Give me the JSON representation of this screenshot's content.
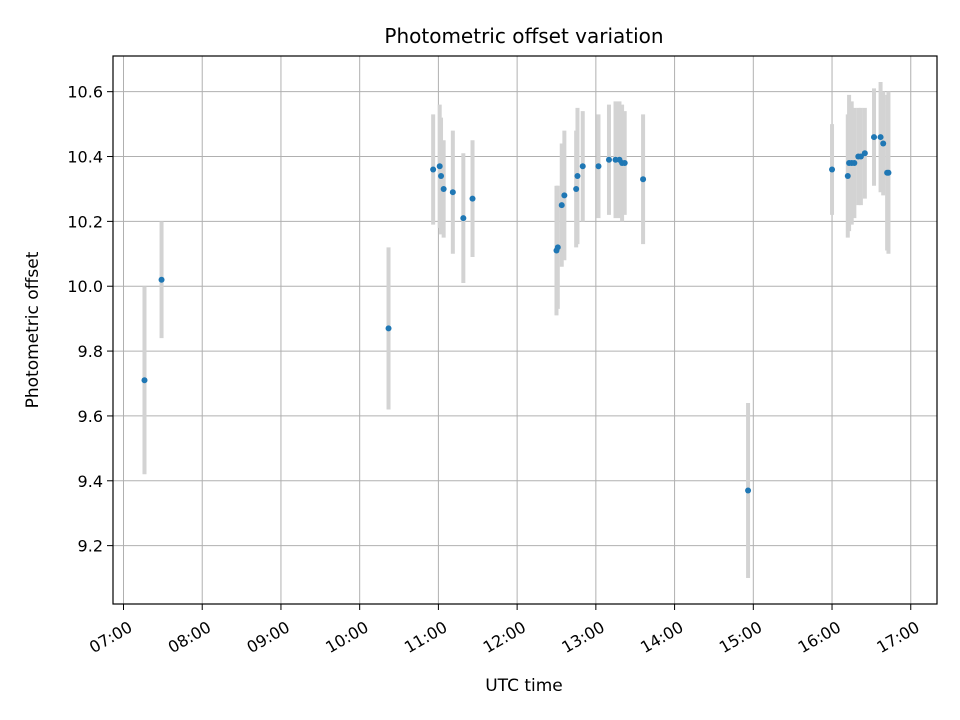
{
  "chart_data": {
    "type": "scatter",
    "title": "Photometric offset variation",
    "xlabel": "UTC time",
    "ylabel": "Photometric offset",
    "xlim": [
      "06:52",
      "17:20"
    ],
    "ylim": [
      9.02,
      10.71
    ],
    "x_ticks": [
      "07:00",
      "08:00",
      "09:00",
      "10:00",
      "11:00",
      "12:00",
      "13:00",
      "14:00",
      "15:00",
      "16:00",
      "17:00"
    ],
    "y_ticks": [
      9.2,
      9.4,
      9.6,
      9.8,
      10.0,
      10.2,
      10.4,
      10.6
    ],
    "grid": true,
    "colors": {
      "point": "#1f77b4",
      "errorbar": "#d3d3d3",
      "grid": "#b0b0b0"
    },
    "points": [
      {
        "time": "07:16",
        "y": 9.71,
        "err": 0.29
      },
      {
        "time": "07:29",
        "y": 10.02,
        "err": 0.18
      },
      {
        "time": "10:22",
        "y": 9.87,
        "err": 0.25
      },
      {
        "time": "10:56",
        "y": 10.36,
        "err": 0.17
      },
      {
        "time": "11:01",
        "y": 10.37,
        "err": 0.19
      },
      {
        "time": "11:02",
        "y": 10.34,
        "err": 0.18
      },
      {
        "time": "11:04",
        "y": 10.3,
        "err": 0.15
      },
      {
        "time": "11:11",
        "y": 10.29,
        "err": 0.19
      },
      {
        "time": "11:19",
        "y": 10.21,
        "err": 0.2
      },
      {
        "time": "11:26",
        "y": 10.27,
        "err": 0.18
      },
      {
        "time": "12:30",
        "y": 10.11,
        "err": 0.2
      },
      {
        "time": "12:31",
        "y": 10.12,
        "err": 0.19
      },
      {
        "time": "12:34",
        "y": 10.25,
        "err": 0.19
      },
      {
        "time": "12:36",
        "y": 10.28,
        "err": 0.2
      },
      {
        "time": "12:45",
        "y": 10.3,
        "err": 0.18
      },
      {
        "time": "12:46",
        "y": 10.34,
        "err": 0.21
      },
      {
        "time": "12:50",
        "y": 10.37,
        "err": 0.17
      },
      {
        "time": "13:02",
        "y": 10.37,
        "err": 0.16
      },
      {
        "time": "13:10",
        "y": 10.39,
        "err": 0.17
      },
      {
        "time": "13:15",
        "y": 10.39,
        "err": 0.18
      },
      {
        "time": "13:18",
        "y": 10.39,
        "err": 0.18
      },
      {
        "time": "13:20",
        "y": 10.38,
        "err": 0.18
      },
      {
        "time": "13:22",
        "y": 10.38,
        "err": 0.16
      },
      {
        "time": "13:36",
        "y": 10.33,
        "err": 0.2
      },
      {
        "time": "14:56",
        "y": 9.37,
        "err": 0.27
      },
      {
        "time": "16:00",
        "y": 10.36,
        "err": 0.14
      },
      {
        "time": "16:12",
        "y": 10.34,
        "err": 0.19
      },
      {
        "time": "16:13",
        "y": 10.38,
        "err": 0.21
      },
      {
        "time": "16:15",
        "y": 10.38,
        "err": 0.19
      },
      {
        "time": "16:17",
        "y": 10.38,
        "err": 0.17
      },
      {
        "time": "16:20",
        "y": 10.4,
        "err": 0.15
      },
      {
        "time": "16:22",
        "y": 10.4,
        "err": 0.15
      },
      {
        "time": "16:25",
        "y": 10.41,
        "err": 0.14
      },
      {
        "time": "16:32",
        "y": 10.46,
        "err": 0.15
      },
      {
        "time": "16:37",
        "y": 10.46,
        "err": 0.17
      },
      {
        "time": "16:39",
        "y": 10.44,
        "err": 0.16
      },
      {
        "time": "16:42",
        "y": 10.35,
        "err": 0.24
      },
      {
        "time": "16:43",
        "y": 10.35,
        "err": 0.25
      }
    ]
  }
}
